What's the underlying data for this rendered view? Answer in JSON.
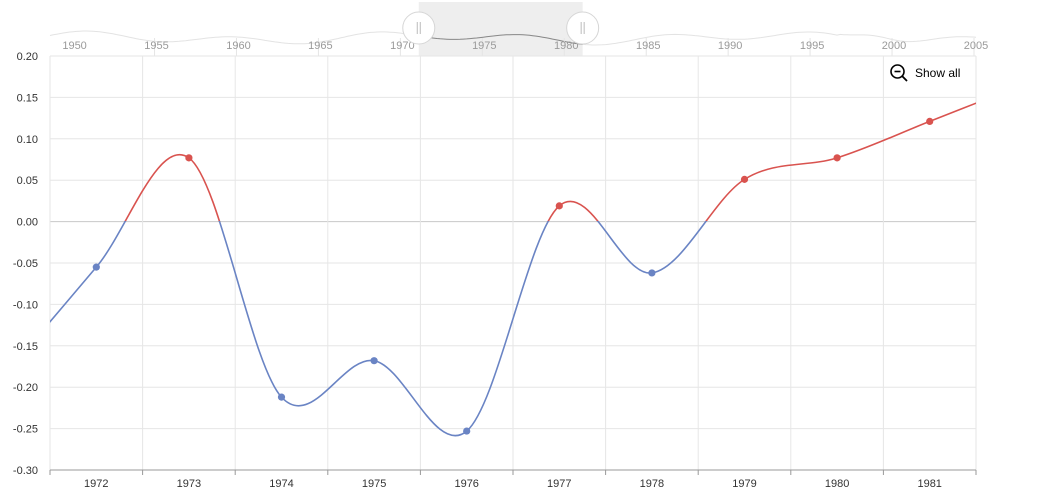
{
  "zoom_control": {
    "show_all_label": "Show all",
    "icon": "zoom-out-icon"
  },
  "colors": {
    "positive": "#d9534f",
    "negative": "#6a84c4",
    "grid": "#e6e6e6",
    "scrollbar_line": "#888888"
  },
  "scrollbar": {
    "tick_labels": [
      "1950",
      "1955",
      "1960",
      "1965",
      "1970",
      "1975",
      "1980",
      "1985",
      "1990",
      "1995",
      "2000",
      "2005"
    ],
    "selection_range": [
      1971,
      1981
    ]
  },
  "chart_data": {
    "type": "line",
    "x": [
      "1972",
      "1973",
      "1974",
      "1975",
      "1976",
      "1977",
      "1978",
      "1979",
      "1980",
      "1981"
    ],
    "values": [
      -0.055,
      0.077,
      -0.212,
      -0.168,
      -0.253,
      0.019,
      -0.062,
      0.051,
      0.077,
      0.121
    ],
    "y_tick_labels": [
      "0.20",
      "0.15",
      "0.10",
      "0.05",
      "0.00",
      "-0.05",
      "-0.10",
      "-0.15",
      "-0.20",
      "-0.25",
      "-0.30"
    ],
    "ylim": [
      -0.3,
      0.2
    ],
    "grid": true,
    "line_coloring": "red above zero, blue below zero"
  }
}
